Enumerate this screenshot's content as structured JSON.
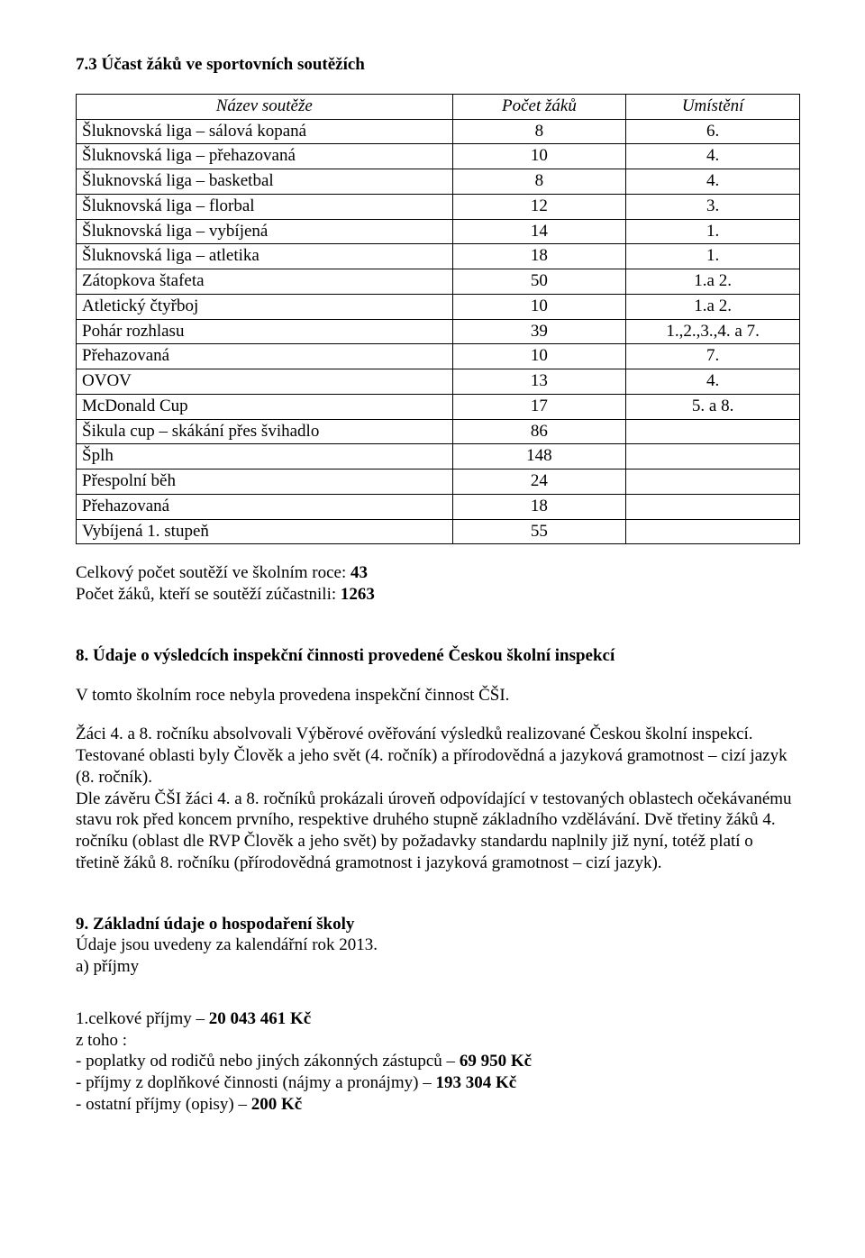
{
  "section73": {
    "title": "7.3 Účast žáků ve sportovních soutěžích",
    "table": {
      "headers": [
        "Název soutěže",
        "Počet žáků",
        "Umístění"
      ],
      "rows": [
        [
          "Šluknovská liga – sálová kopaná",
          "8",
          "6."
        ],
        [
          "Šluknovská liga – přehazovaná",
          "10",
          "4."
        ],
        [
          "Šluknovská liga – basketbal",
          "8",
          "4."
        ],
        [
          "Šluknovská liga – florbal",
          "12",
          "3."
        ],
        [
          "Šluknovská liga – vybíjená",
          "14",
          "1."
        ],
        [
          "Šluknovská liga – atletika",
          "18",
          "1."
        ],
        [
          "Zátopkova štafeta",
          "50",
          "1.a 2."
        ],
        [
          "Atletický čtyřboj",
          "10",
          "1.a 2."
        ],
        [
          "Pohár rozhlasu",
          "39",
          "1.,2.,3.,4. a 7."
        ],
        [
          "Přehazovaná",
          "10",
          "7."
        ],
        [
          "OVOV",
          "13",
          "4."
        ],
        [
          "McDonald Cup",
          "17",
          "5. a 8."
        ],
        [
          "Šikula cup – skákání přes švihadlo",
          "86",
          ""
        ],
        [
          "Šplh",
          "148",
          ""
        ],
        [
          "Přespolní běh",
          "24",
          ""
        ],
        [
          "Přehazovaná",
          "18",
          ""
        ],
        [
          "Vybíjená 1. stupeň",
          "55",
          ""
        ]
      ]
    },
    "summary1_label": "Celkový počet soutěží ve školním roce:  ",
    "summary1_value": "43",
    "summary2_label": "Počet žáků, kteří se soutěží zúčastnili:    ",
    "summary2_value": "1263"
  },
  "section8": {
    "title": "8. Údaje o výsledcích inspekční činnosti provedené Českou školní inspekcí",
    "p1": "V tomto školním roce nebyla provedena inspekční činnost ČŠI.",
    "p2": "Žáci 4. a 8. ročníku absolvovali Výběrové ověřování výsledků realizované Českou školní inspekcí. Testované oblasti byly Člověk a jeho svět (4. ročník) a přírodovědná a jazyková gramotnost – cizí jazyk (8. ročník).",
    "p3": "Dle závěru ČŠI žáci 4. a 8. ročníků prokázali úroveň odpovídající v testovaných oblastech očekávanému stavu rok před koncem prvního, respektive druhého stupně základního vzdělávání. Dvě třetiny žáků 4. ročníku (oblast dle RVP Člověk a jeho svět) by požadavky standardu naplnily již nyní, totéž platí o třetině žáků 8. ročníku (přírodovědná gramotnost i jazyková gramotnost – cizí jazyk)."
  },
  "section9": {
    "title": "9. Základní údaje o hospodaření školy",
    "sub1": "Údaje jsou uvedeny za kalendářní rok 2013.",
    "sub2": "a) příjmy",
    "line1_pre": "1.celkové příjmy – ",
    "line1_bold": "20 043 461 Kč",
    "line2": "z toho :",
    "li1_pre": "- poplatky od rodičů nebo jiných zákonných zástupců – ",
    "li1_bold": "69 950 Kč",
    "li2_pre": "- příjmy z doplňkové činnosti (nájmy a pronájmy) – ",
    "li2_bold": "193 304 Kč",
    "li3_pre": "- ostatní příjmy (opisy) – ",
    "li3_bold": "200 Kč"
  }
}
